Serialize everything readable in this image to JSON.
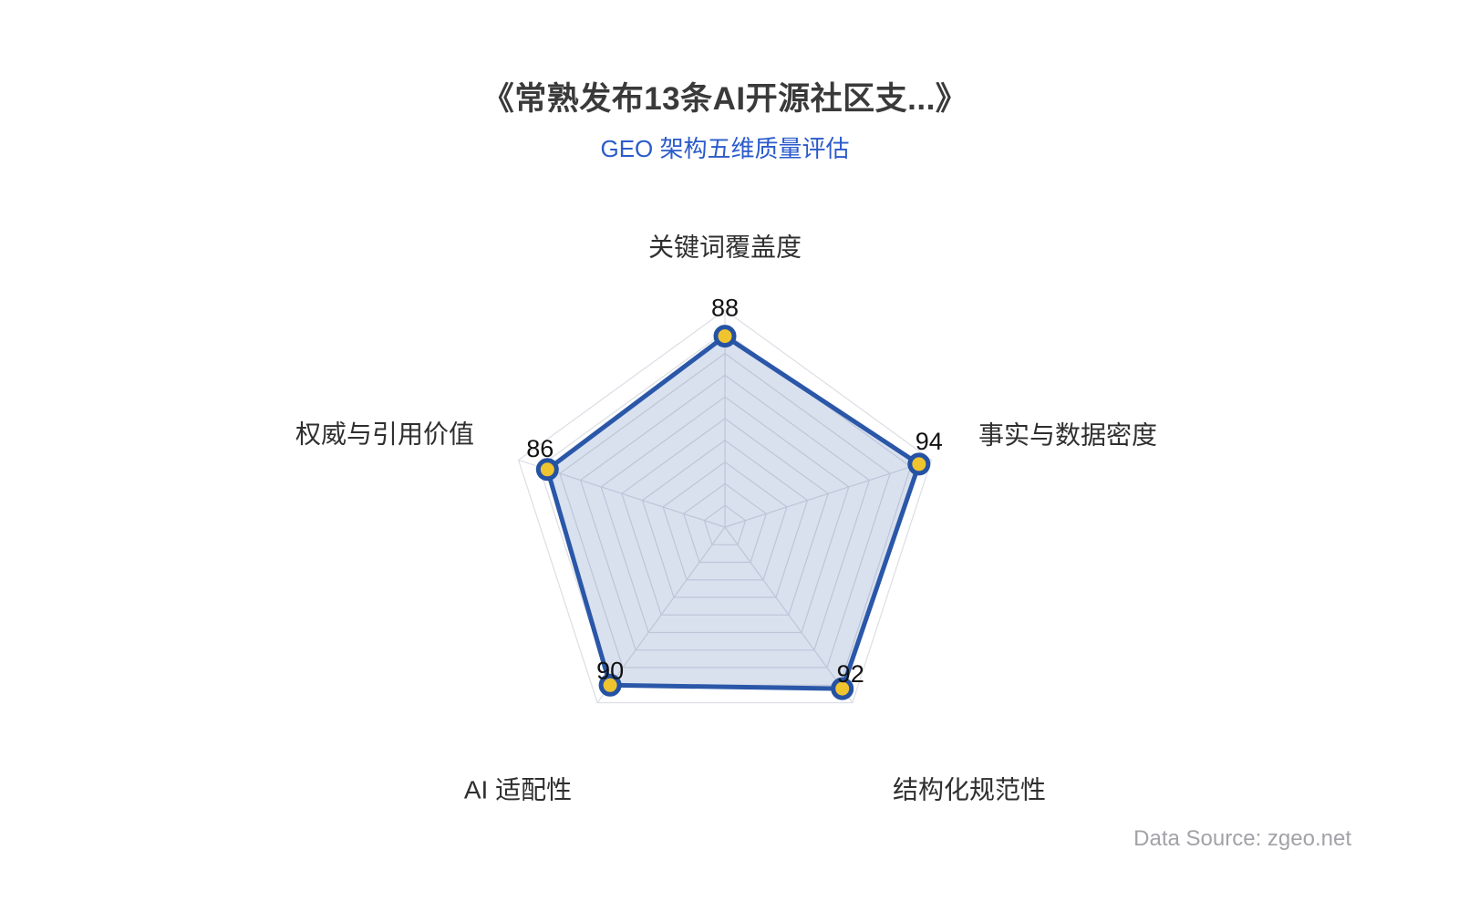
{
  "header": {
    "title": "《常熟发布13条AI开源社区支...》",
    "subtitle": "GEO 架构五维质量评估"
  },
  "footer": {
    "source": "Data Source: zgeo.net"
  },
  "chart_data": {
    "type": "radar",
    "title": "《常熟发布13条AI开源社区支...》",
    "subtitle": "GEO 架构五维质量评估",
    "categories": [
      "关键词覆盖度",
      "事实与数据密度",
      "结构化规范性",
      "AI 适配性",
      "权威与引用价值"
    ],
    "series": [
      {
        "name": "GEO 架构五维质量评估",
        "values": [
          88,
          94,
          92,
          90,
          86
        ]
      }
    ],
    "axis_range": {
      "min": 0,
      "max": 100,
      "split_number": 10
    },
    "grid": true,
    "legend_position": "none",
    "colors": {
      "series_line": "#2a57a8",
      "series_fill": "rgba(42, 87, 168, 0.18)",
      "point_fill": "#efc42f",
      "point_ring": "#2552a3",
      "grid_line": "#dcdee4",
      "value_label": "#111111",
      "axis_label": "#2f2f2f",
      "title": "#3a3a3a",
      "subtitle": "#2b5bcb",
      "source": "#a2a2a8"
    }
  }
}
